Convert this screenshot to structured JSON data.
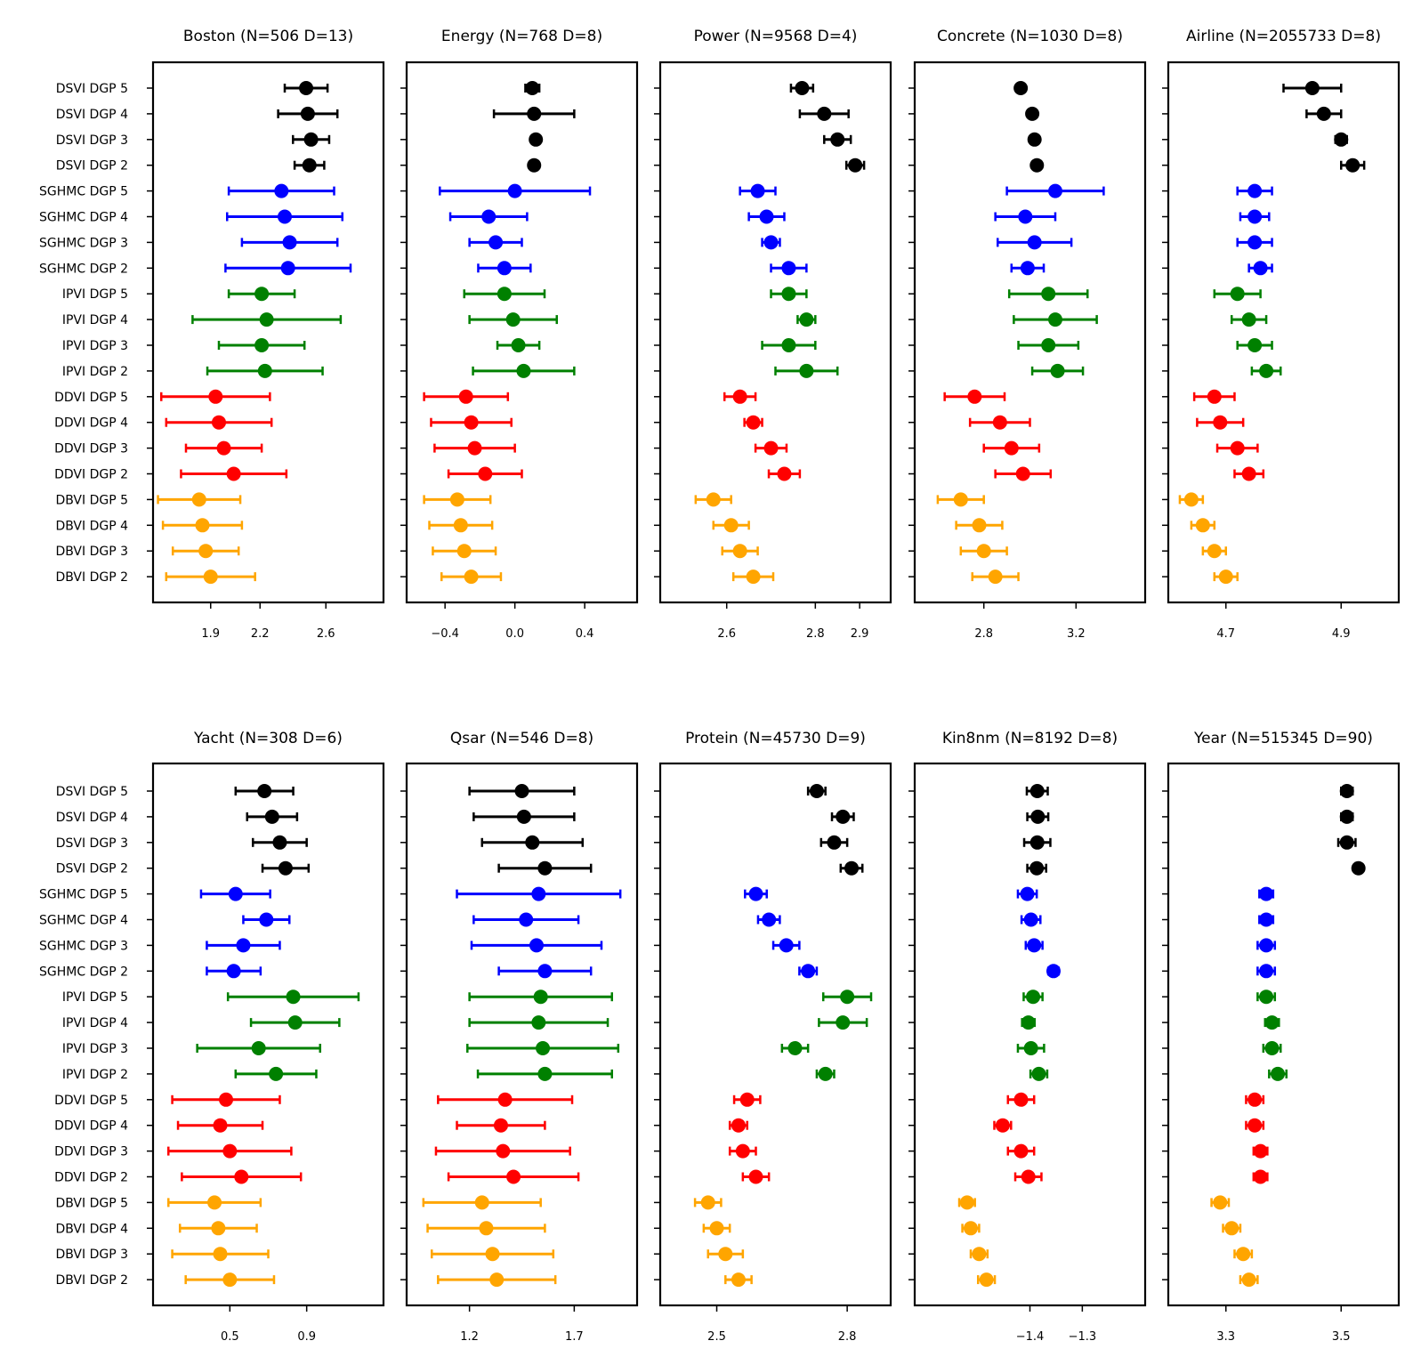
{
  "figure_title": "",
  "colors": {
    "DSVI": "#000000",
    "SGHMC": "#0000ff",
    "IPVI": "#008000",
    "DDVI": "#ff0000",
    "DBVI": "#ffa500"
  },
  "chart_data": [
    {
      "type": "errorbar",
      "title": "Boston (N=506 D=13)",
      "xticks": [
        1.9,
        2.2,
        2.6
      ],
      "xtick_labels": [
        "1.9",
        "2.2",
        "2.6"
      ],
      "xlim": [
        1.55,
        2.95
      ],
      "categories": [
        "DSVI DGP 5",
        "DSVI DGP 4",
        "DSVI DGP 3",
        "DSVI DGP 2",
        "SGHMC DGP 5",
        "SGHMC DGP 4",
        "SGHMC DGP 3",
        "SGHMC DGP 2",
        "IPVI DGP 5",
        "IPVI DGP 4",
        "IPVI DGP 3",
        "IPVI DGP 2",
        "DDVI DGP 5",
        "DDVI DGP 4",
        "DDVI DGP 3",
        "DDVI DGP 2",
        "DBVI DGP 5",
        "DBVI DGP 4",
        "DBVI DGP 3",
        "DBVI DGP 2"
      ],
      "groups": [
        "DSVI",
        "DSVI",
        "DSVI",
        "DSVI",
        "SGHMC",
        "SGHMC",
        "SGHMC",
        "SGHMC",
        "IPVI",
        "IPVI",
        "IPVI",
        "IPVI",
        "DDVI",
        "DDVI",
        "DDVI",
        "DDVI",
        "DBVI",
        "DBVI",
        "DBVI",
        "DBVI"
      ],
      "values": [
        2.48,
        2.49,
        2.51,
        2.5,
        2.33,
        2.35,
        2.38,
        2.37,
        2.21,
        2.24,
        2.21,
        2.23,
        1.93,
        1.95,
        1.98,
        2.04,
        1.83,
        1.85,
        1.87,
        1.9
      ],
      "errors": [
        0.13,
        0.18,
        0.11,
        0.09,
        0.32,
        0.35,
        0.29,
        0.38,
        0.2,
        0.45,
        0.26,
        0.35,
        0.33,
        0.32,
        0.23,
        0.32,
        0.25,
        0.24,
        0.2,
        0.27
      ]
    },
    {
      "type": "errorbar",
      "title": "Energy  (N=768  D=8)",
      "xticks": [
        -0.4,
        0.0,
        0.4
      ],
      "xtick_labels": [
        "−0.4",
        "0.0",
        "0.4"
      ],
      "xlim": [
        -0.62,
        0.7
      ],
      "categories": [
        "DSVI DGP 5",
        "DSVI DGP 4",
        "DSVI DGP 3",
        "DSVI DGP 2",
        "SGHMC DGP 5",
        "SGHMC DGP 4",
        "SGHMC DGP 3",
        "SGHMC DGP 2",
        "IPVI DGP 5",
        "IPVI DGP 4",
        "IPVI DGP 3",
        "IPVI DGP 2",
        "DDVI DGP 5",
        "DDVI DGP 4",
        "DDVI DGP 3",
        "DDVI DGP 2",
        "DBVI DGP 5",
        "DBVI DGP 4",
        "DBVI DGP 3",
        "DBVI DGP 2"
      ],
      "groups": [
        "DSVI",
        "DSVI",
        "DSVI",
        "DSVI",
        "SGHMC",
        "SGHMC",
        "SGHMC",
        "SGHMC",
        "IPVI",
        "IPVI",
        "IPVI",
        "IPVI",
        "DDVI",
        "DDVI",
        "DDVI",
        "DDVI",
        "DBVI",
        "DBVI",
        "DBVI",
        "DBVI"
      ],
      "values": [
        0.1,
        0.11,
        0.12,
        0.11,
        0.0,
        -0.15,
        -0.11,
        -0.06,
        -0.06,
        -0.01,
        0.02,
        0.05,
        -0.28,
        -0.25,
        -0.23,
        -0.17,
        -0.33,
        -0.31,
        -0.29,
        -0.25
      ],
      "errors": [
        0.04,
        0.23,
        0.02,
        0.02,
        0.43,
        0.22,
        0.15,
        0.15,
        0.23,
        0.25,
        0.12,
        0.29,
        0.24,
        0.23,
        0.23,
        0.21,
        0.19,
        0.18,
        0.18,
        0.17
      ]
    },
    {
      "type": "errorbar",
      "title": "Power  (N=9568  D=4)",
      "xticks": [
        2.6,
        2.8,
        2.9
      ],
      "xtick_labels": [
        "2.6",
        "2.8",
        "2.9"
      ],
      "xlim": [
        2.45,
        2.97
      ],
      "categories": [
        "DSVI DGP 5",
        "DSVI DGP 4",
        "DSVI DGP 3",
        "DSVI DGP 2",
        "SGHMC DGP 5",
        "SGHMC DGP 4",
        "SGHMC DGP 3",
        "SGHMC DGP 2",
        "IPVI DGP 5",
        "IPVI DGP 4",
        "IPVI DGP 3",
        "IPVI DGP 2",
        "DDVI DGP 5",
        "DDVI DGP 4",
        "DDVI DGP 3",
        "DDVI DGP 2",
        "DBVI DGP 5",
        "DBVI DGP 4",
        "DBVI DGP 3",
        "DBVI DGP 2"
      ],
      "groups": [
        "DSVI",
        "DSVI",
        "DSVI",
        "DSVI",
        "SGHMC",
        "SGHMC",
        "SGHMC",
        "SGHMC",
        "IPVI",
        "IPVI",
        "IPVI",
        "IPVI",
        "DDVI",
        "DDVI",
        "DDVI",
        "DDVI",
        "DBVI",
        "DBVI",
        "DBVI",
        "DBVI"
      ],
      "values": [
        2.77,
        2.82,
        2.85,
        2.89,
        2.67,
        2.69,
        2.7,
        2.74,
        2.74,
        2.78,
        2.74,
        2.78,
        2.63,
        2.66,
        2.7,
        2.73,
        2.57,
        2.61,
        2.63,
        2.66
      ],
      "errors": [
        0.025,
        0.055,
        0.03,
        0.02,
        0.04,
        0.04,
        0.02,
        0.04,
        0.04,
        0.02,
        0.06,
        0.07,
        0.035,
        0.02,
        0.035,
        0.035,
        0.04,
        0.04,
        0.04,
        0.045
      ]
    },
    {
      "type": "errorbar",
      "title": "Concrete  (N=1030  D=8)",
      "xticks": [
        2.8,
        3.2
      ],
      "xtick_labels": [
        "2.8",
        "3.2"
      ],
      "xlim": [
        2.5,
        3.5
      ],
      "categories": [
        "DSVI DGP 5",
        "DSVI DGP 4",
        "DSVI DGP 3",
        "DSVI DGP 2",
        "SGHMC DGP 5",
        "SGHMC DGP 4",
        "SGHMC DGP 3",
        "SGHMC DGP 2",
        "IPVI DGP 5",
        "IPVI DGP 4",
        "IPVI DGP 3",
        "IPVI DGP 2",
        "DDVI DGP 5",
        "DDVI DGP 4",
        "DDVI DGP 3",
        "DDVI DGP 2",
        "DBVI DGP 5",
        "DBVI DGP 4",
        "DBVI DGP 3",
        "DBVI DGP 2"
      ],
      "groups": [
        "DSVI",
        "DSVI",
        "DSVI",
        "DSVI",
        "SGHMC",
        "SGHMC",
        "SGHMC",
        "SGHMC",
        "IPVI",
        "IPVI",
        "IPVI",
        "IPVI",
        "DDVI",
        "DDVI",
        "DDVI",
        "DDVI",
        "DBVI",
        "DBVI",
        "DBVI",
        "DBVI"
      ],
      "values": [
        2.96,
        3.01,
        3.02,
        3.03,
        3.11,
        2.98,
        3.02,
        2.99,
        3.08,
        3.11,
        3.08,
        3.12,
        2.76,
        2.87,
        2.92,
        2.97,
        2.7,
        2.78,
        2.8,
        2.85
      ],
      "errors": [
        0.01,
        0.01,
        0.01,
        0.01,
        0.21,
        0.13,
        0.16,
        0.07,
        0.17,
        0.18,
        0.13,
        0.11,
        0.13,
        0.13,
        0.12,
        0.12,
        0.1,
        0.1,
        0.1,
        0.1
      ]
    },
    {
      "type": "errorbar",
      "title": "Airline  (N=2055733  D=8)",
      "xticks": [
        4.7,
        4.9
      ],
      "xtick_labels": [
        "4.7",
        "4.9"
      ],
      "xlim": [
        4.6,
        5.0
      ],
      "categories": [
        "DSVI DGP 5",
        "DSVI DGP 4",
        "DSVI DGP 3",
        "DSVI DGP 2",
        "SGHMC DGP 5",
        "SGHMC DGP 4",
        "SGHMC DGP 3",
        "SGHMC DGP 2",
        "IPVI DGP 5",
        "IPVI DGP 4",
        "IPVI DGP 3",
        "IPVI DGP 2",
        "DDVI DGP 5",
        "DDVI DGP 4",
        "DDVI DGP 3",
        "DDVI DGP 2",
        "DBVI DGP 5",
        "DBVI DGP 4",
        "DBVI DGP 3",
        "DBVI DGP 2"
      ],
      "groups": [
        "DSVI",
        "DSVI",
        "DSVI",
        "DSVI",
        "SGHMC",
        "SGHMC",
        "SGHMC",
        "SGHMC",
        "IPVI",
        "IPVI",
        "IPVI",
        "IPVI",
        "DDVI",
        "DDVI",
        "DDVI",
        "DDVI",
        "DBVI",
        "DBVI",
        "DBVI",
        "DBVI"
      ],
      "values": [
        4.85,
        4.87,
        4.9,
        4.92,
        4.75,
        4.75,
        4.75,
        4.76,
        4.72,
        4.74,
        4.75,
        4.77,
        4.68,
        4.69,
        4.72,
        4.74,
        4.64,
        4.66,
        4.68,
        4.7
      ],
      "errors": [
        0.05,
        0.03,
        0.01,
        0.02,
        0.03,
        0.025,
        0.03,
        0.02,
        0.04,
        0.03,
        0.03,
        0.025,
        0.035,
        0.04,
        0.035,
        0.025,
        0.02,
        0.02,
        0.02,
        0.02
      ]
    },
    {
      "type": "errorbar",
      "title": "Yacht  (N=308  D=6)",
      "xticks": [
        0.5,
        0.9
      ],
      "xtick_labels": [
        "0.5",
        "0.9"
      ],
      "xlim": [
        0.1,
        1.3
      ],
      "categories": [
        "DSVI DGP 5",
        "DSVI DGP 4",
        "DSVI DGP 3",
        "DSVI DGP 2",
        "SGHMC DGP 5",
        "SGHMC DGP 4",
        "SGHMC DGP 3",
        "SGHMC DGP 2",
        "IPVI DGP 5",
        "IPVI DGP 4",
        "IPVI DGP 3",
        "IPVI DGP 2",
        "DDVI DGP 5",
        "DDVI DGP 4",
        "DDVI DGP 3",
        "DDVI DGP 2",
        "DBVI DGP 5",
        "DBVI DGP 4",
        "DBVI DGP 3",
        "DBVI DGP 2"
      ],
      "groups": [
        "DSVI",
        "DSVI",
        "DSVI",
        "DSVI",
        "SGHMC",
        "SGHMC",
        "SGHMC",
        "SGHMC",
        "IPVI",
        "IPVI",
        "IPVI",
        "IPVI",
        "DDVI",
        "DDVI",
        "DDVI",
        "DDVI",
        "DBVI",
        "DBVI",
        "DBVI",
        "DBVI"
      ],
      "values": [
        0.68,
        0.72,
        0.76,
        0.79,
        0.53,
        0.69,
        0.57,
        0.52,
        0.83,
        0.84,
        0.65,
        0.74,
        0.48,
        0.45,
        0.5,
        0.56,
        0.42,
        0.44,
        0.45,
        0.5
      ],
      "errors": [
        0.15,
        0.13,
        0.14,
        0.12,
        0.18,
        0.12,
        0.19,
        0.14,
        0.34,
        0.23,
        0.32,
        0.21,
        0.28,
        0.22,
        0.32,
        0.31,
        0.24,
        0.2,
        0.25,
        0.23
      ]
    },
    {
      "type": "errorbar",
      "title": "Qsar  (N=546  D=8)",
      "xticks": [
        1.2,
        1.7
      ],
      "xtick_labels": [
        "1.2",
        "1.7"
      ],
      "xlim": [
        0.9,
        2.0
      ],
      "categories": [
        "DSVI DGP 5",
        "DSVI DGP 4",
        "DSVI DGP 3",
        "DSVI DGP 2",
        "SGHMC DGP 5",
        "SGHMC DGP 4",
        "SGHMC DGP 3",
        "SGHMC DGP 2",
        "IPVI DGP 5",
        "IPVI DGP 4",
        "IPVI DGP 3",
        "IPVI DGP 2",
        "DDVI DGP 5",
        "DDVI DGP 4",
        "DDVI DGP 3",
        "DDVI DGP 2",
        "DBVI DGP 5",
        "DBVI DGP 4",
        "DBVI DGP 3",
        "DBVI DGP 2"
      ],
      "groups": [
        "DSVI",
        "DSVI",
        "DSVI",
        "DSVI",
        "SGHMC",
        "SGHMC",
        "SGHMC",
        "SGHMC",
        "IPVI",
        "IPVI",
        "IPVI",
        "IPVI",
        "DDVI",
        "DDVI",
        "DDVI",
        "DDVI",
        "DBVI",
        "DBVI",
        "DBVI",
        "DBVI"
      ],
      "values": [
        1.45,
        1.46,
        1.5,
        1.56,
        1.53,
        1.47,
        1.52,
        1.56,
        1.54,
        1.53,
        1.55,
        1.56,
        1.37,
        1.35,
        1.36,
        1.41,
        1.26,
        1.28,
        1.31,
        1.33
      ],
      "errors": [
        0.25,
        0.24,
        0.24,
        0.22,
        0.39,
        0.25,
        0.31,
        0.22,
        0.34,
        0.33,
        0.36,
        0.32,
        0.32,
        0.21,
        0.32,
        0.31,
        0.28,
        0.28,
        0.29,
        0.28
      ]
    },
    {
      "type": "errorbar",
      "title": "Protein  (N=45730  D=9)",
      "xticks": [
        2.5,
        2.8
      ],
      "xtick_labels": [
        "2.5",
        "2.8"
      ],
      "xlim": [
        2.37,
        2.9
      ],
      "categories": [
        "DSVI DGP 5",
        "DSVI DGP 4",
        "DSVI DGP 3",
        "DSVI DGP 2",
        "SGHMC DGP 5",
        "SGHMC DGP 4",
        "SGHMC DGP 3",
        "SGHMC DGP 2",
        "IPVI DGP 5",
        "IPVI DGP 4",
        "IPVI DGP 3",
        "IPVI DGP 2",
        "DDVI DGP 5",
        "DDVI DGP 4",
        "DDVI DGP 3",
        "DDVI DGP 2",
        "DBVI DGP 5",
        "DBVI DGP 4",
        "DBVI DGP 3",
        "DBVI DGP 2"
      ],
      "groups": [
        "DSVI",
        "DSVI",
        "DSVI",
        "DSVI",
        "SGHMC",
        "SGHMC",
        "SGHMC",
        "SGHMC",
        "IPVI",
        "IPVI",
        "IPVI",
        "IPVI",
        "DDVI",
        "DDVI",
        "DDVI",
        "DDVI",
        "DBVI",
        "DBVI",
        "DBVI",
        "DBVI"
      ],
      "values": [
        2.73,
        2.79,
        2.77,
        2.81,
        2.59,
        2.62,
        2.66,
        2.71,
        2.8,
        2.79,
        2.68,
        2.75,
        2.57,
        2.55,
        2.56,
        2.59,
        2.48,
        2.5,
        2.52,
        2.55
      ],
      "errors": [
        0.02,
        0.025,
        0.03,
        0.025,
        0.025,
        0.025,
        0.03,
        0.02,
        0.055,
        0.055,
        0.03,
        0.02,
        0.03,
        0.02,
        0.03,
        0.03,
        0.03,
        0.03,
        0.04,
        0.03
      ]
    },
    {
      "type": "errorbar",
      "title": "Kin8nm  (N=8192  D=8)",
      "xticks": [
        -1.4,
        -1.3
      ],
      "xtick_labels": [
        "−1.4",
        "−1.3"
      ],
      "xlim": [
        -1.62,
        -1.18
      ],
      "categories": [
        "DSVI DGP 5",
        "DSVI DGP 4",
        "DSVI DGP 3",
        "DSVI DGP 2",
        "SGHMC DGP 5",
        "SGHMC DGP 4",
        "SGHMC DGP 3",
        "SGHMC DGP 2",
        "IPVI DGP 5",
        "IPVI DGP 4",
        "IPVI DGP 3",
        "IPVI DGP 2",
        "DDVI DGP 5",
        "DDVI DGP 4",
        "DDVI DGP 3",
        "DDVI DGP 2",
        "DBVI DGP 5",
        "DBVI DGP 4",
        "DBVI DGP 3",
        "DBVI DGP 2"
      ],
      "groups": [
        "DSVI",
        "DSVI",
        "DSVI",
        "DSVI",
        "SGHMC",
        "SGHMC",
        "SGHMC",
        "SGHMC",
        "IPVI",
        "IPVI",
        "IPVI",
        "IPVI",
        "DDVI",
        "DDVI",
        "DDVI",
        "DDVI",
        "DBVI",
        "DBVI",
        "DBVI",
        "DBVI"
      ],
      "values": [
        -1.386,
        -1.385,
        -1.386,
        -1.387,
        -1.405,
        -1.398,
        -1.392,
        -1.355,
        -1.394,
        -1.403,
        -1.398,
        -1.383,
        -1.417,
        -1.452,
        -1.417,
        -1.403,
        -1.52,
        -1.513,
        -1.497,
        -1.483
      ],
      "errors": [
        0.02,
        0.02,
        0.025,
        0.018,
        0.018,
        0.018,
        0.016,
        0.01,
        0.018,
        0.012,
        0.025,
        0.016,
        0.025,
        0.016,
        0.025,
        0.025,
        0.015,
        0.016,
        0.016,
        0.016
      ]
    },
    {
      "type": "errorbar",
      "title": "Year (N=515345  D=90)",
      "xticks": [
        3.3,
        3.5
      ],
      "xtick_labels": [
        "3.3",
        "3.5"
      ],
      "xlim": [
        3.2,
        3.6
      ],
      "categories": [
        "DSVI DGP 5",
        "DSVI DGP 4",
        "DSVI DGP 3",
        "DSVI DGP 2",
        "SGHMC DGP 5",
        "SGHMC DGP 4",
        "SGHMC DGP 3",
        "SGHMC DGP 2",
        "IPVI DGP 5",
        "IPVI DGP 4",
        "IPVI DGP 3",
        "IPVI DGP 2",
        "DDVI DGP 5",
        "DDVI DGP 4",
        "DDVI DGP 3",
        "DDVI DGP 2",
        "DBVI DGP 5",
        "DBVI DGP 4",
        "DBVI DGP 3",
        "DBVI DGP 2"
      ],
      "groups": [
        "DSVI",
        "DSVI",
        "DSVI",
        "DSVI",
        "SGHMC",
        "SGHMC",
        "SGHMC",
        "SGHMC",
        "IPVI",
        "IPVI",
        "IPVI",
        "IPVI",
        "DDVI",
        "DDVI",
        "DDVI",
        "DDVI",
        "DBVI",
        "DBVI",
        "DBVI",
        "DBVI"
      ],
      "values": [
        3.51,
        3.51,
        3.51,
        3.53,
        3.37,
        3.37,
        3.37,
        3.37,
        3.37,
        3.38,
        3.38,
        3.39,
        3.35,
        3.35,
        3.36,
        3.36,
        3.29,
        3.31,
        3.33,
        3.34
      ],
      "errors": [
        0.01,
        0.01,
        0.015,
        0.005,
        0.012,
        0.012,
        0.015,
        0.015,
        0.015,
        0.012,
        0.015,
        0.015,
        0.015,
        0.015,
        0.012,
        0.012,
        0.015,
        0.015,
        0.015,
        0.015
      ]
    }
  ]
}
